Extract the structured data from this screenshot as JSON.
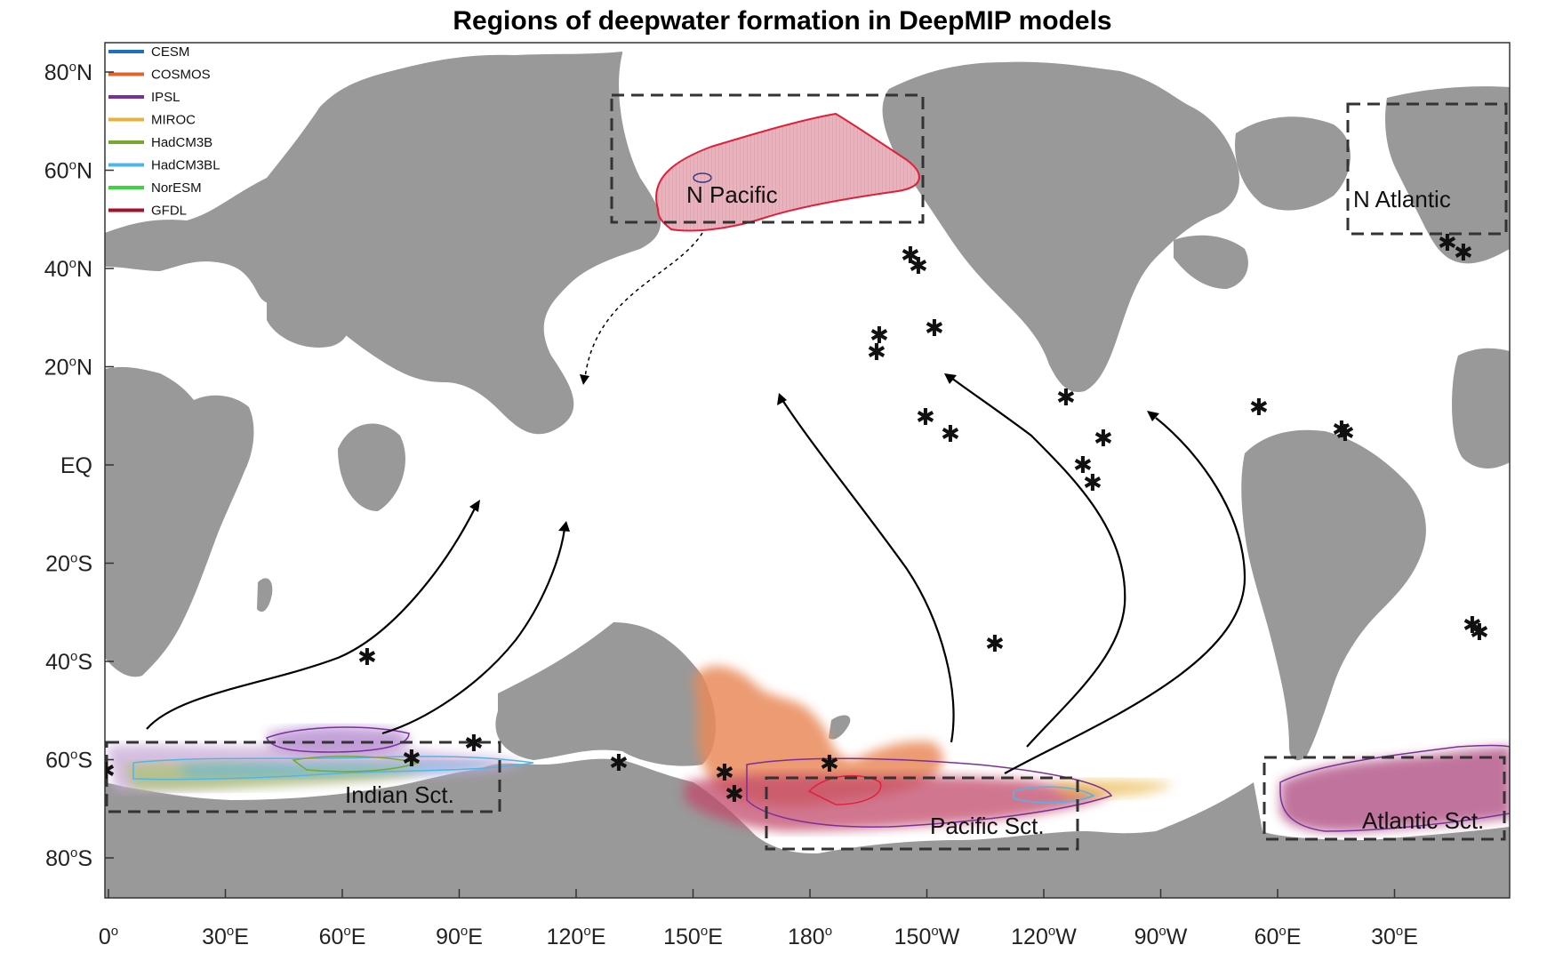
{
  "title": "Regions of deepwater formation in DeepMIP models",
  "legend": [
    {
      "name": "CESM",
      "color": "#1f6fbf"
    },
    {
      "name": "COSMOS",
      "color": "#e0642a"
    },
    {
      "name": "IPSL",
      "color": "#7b2f9a"
    },
    {
      "name": "MIROC",
      "color": "#e8b23a"
    },
    {
      "name": "HadCM3B",
      "color": "#78a82e"
    },
    {
      "name": "HadCM3BL",
      "color": "#4fb6e8"
    },
    {
      "name": "NorESM",
      "color": "#3bd63b"
    },
    {
      "name": "GFDL",
      "color": "#a8102a"
    }
  ],
  "y_ticks": [
    {
      "base": "80",
      "sup": "o",
      "suffix": "N"
    },
    {
      "base": "60",
      "sup": "o",
      "suffix": "N"
    },
    {
      "base": "40",
      "sup": "o",
      "suffix": "N"
    },
    {
      "base": "20",
      "sup": "o",
      "suffix": "N"
    },
    {
      "base": "EQ",
      "sup": "",
      "suffix": ""
    },
    {
      "base": "20",
      "sup": "o",
      "suffix": "S"
    },
    {
      "base": "40",
      "sup": "o",
      "suffix": "S"
    },
    {
      "base": "60",
      "sup": "o",
      "suffix": "S"
    },
    {
      "base": "80",
      "sup": "o",
      "suffix": "S"
    }
  ],
  "x_ticks": [
    {
      "base": "0",
      "sup": "o",
      "suffix": ""
    },
    {
      "base": "30",
      "sup": "o",
      "suffix": "E"
    },
    {
      "base": "60",
      "sup": "o",
      "suffix": "E"
    },
    {
      "base": "90",
      "sup": "o",
      "suffix": "E"
    },
    {
      "base": "120",
      "sup": "o",
      "suffix": "E"
    },
    {
      "base": "150",
      "sup": "o",
      "suffix": "E"
    },
    {
      "base": "180",
      "sup": "o",
      "suffix": ""
    },
    {
      "base": "150",
      "sup": "o",
      "suffix": "W"
    },
    {
      "base": "120",
      "sup": "o",
      "suffix": "W"
    },
    {
      "base": "90",
      "sup": "o",
      "suffix": "W"
    },
    {
      "base": "60",
      "sup": "o",
      "suffix": "E"
    },
    {
      "base": "30",
      "sup": "o",
      "suffix": "E"
    }
  ],
  "regions": {
    "n_pacific": "N Pacific",
    "n_atlantic": "N Atlantic",
    "indian": "Indian Sct.",
    "pacific": "Pacific Sct.",
    "atlantic": "Atlantic Sct."
  },
  "colors": {
    "land": "#999999",
    "ocean": "#ffffff",
    "box": "#333333"
  },
  "star_glyph": "✱"
}
